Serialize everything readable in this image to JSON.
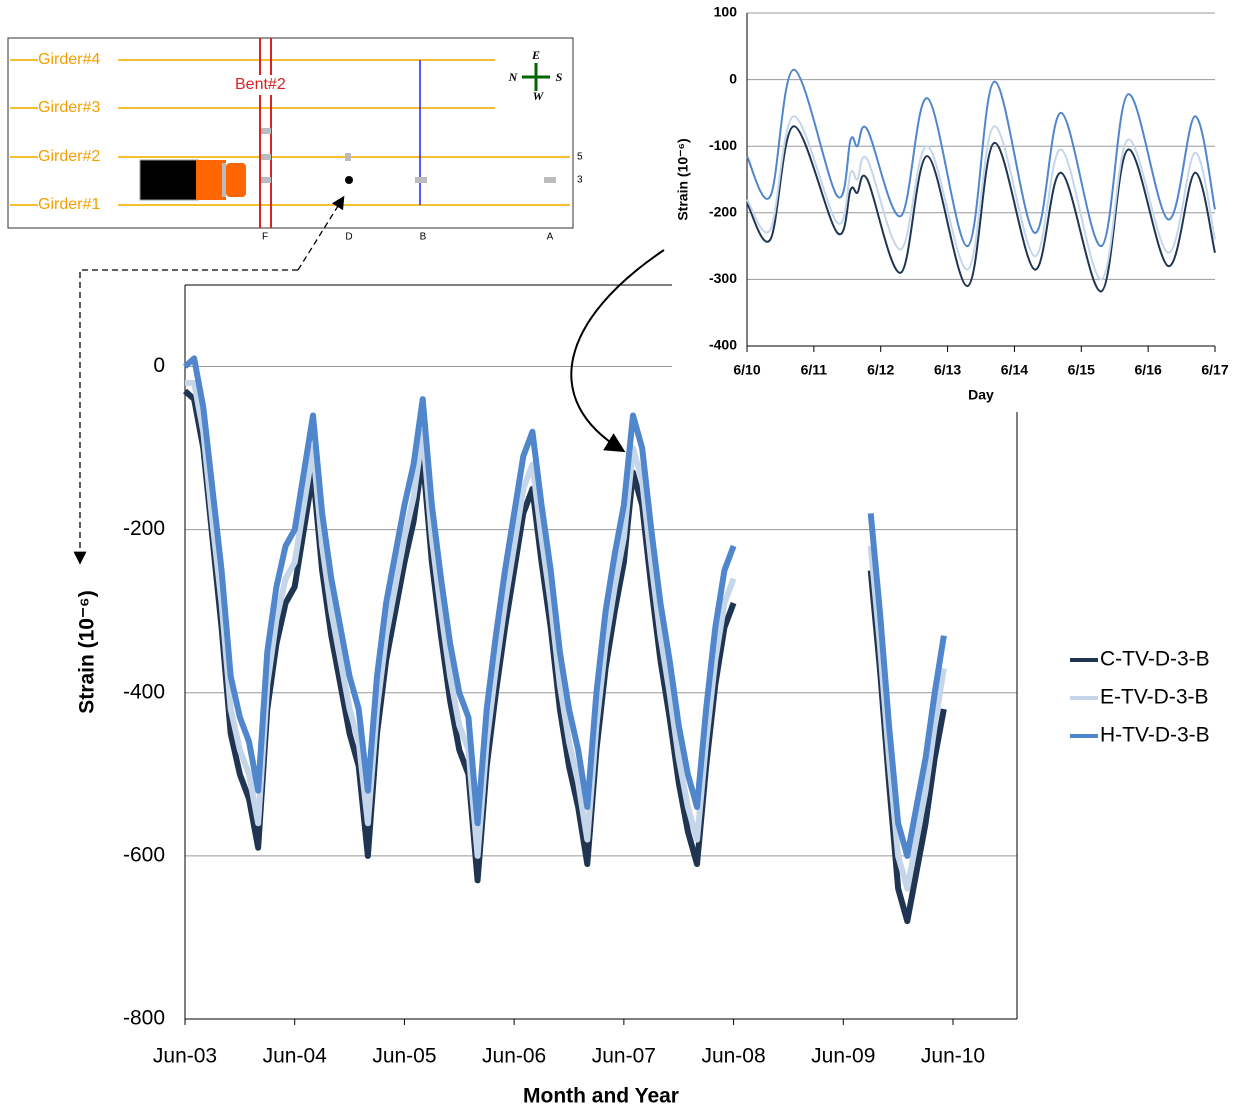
{
  "diagram": {
    "girders": [
      "Girder#4",
      "Girder#3",
      "Girder#2",
      "Girder#1"
    ],
    "bent": "Bent#2",
    "sections": [
      "F",
      "D",
      "B",
      "A"
    ],
    "sensors": [
      "5",
      "3"
    ],
    "compass": {
      "east": "E",
      "north": "N",
      "south": "S",
      "west": "W"
    }
  },
  "chart_data": [
    {
      "type": "line",
      "xlabel": "Month and Year",
      "ylabel": "Strain (10⁻⁶)",
      "legend": "right",
      "grid": true,
      "xlim": [
        "2003-06",
        "2011-01"
      ],
      "xticks": [
        {
          "value": "2003-06",
          "label": "Jun-03"
        },
        {
          "value": "2004-06",
          "label": "Jun-04"
        },
        {
          "value": "2005-06",
          "label": "Jun-05"
        },
        {
          "value": "2006-06",
          "label": "Jun-06"
        },
        {
          "value": "2007-06",
          "label": "Jun-07"
        },
        {
          "value": "2008-06",
          "label": "Jun-08"
        },
        {
          "value": "2009-06",
          "label": "Jun-09"
        },
        {
          "value": "2010-06",
          "label": "Jun-10"
        }
      ],
      "ylim": [
        -800,
        100
      ],
      "yticks": [
        -800,
        -600,
        -400,
        -200,
        0
      ],
      "x": [
        "2003-06",
        "2003-07",
        "2003-08",
        "2003-09",
        "2003-10",
        "2003-11",
        "2003-12",
        "2004-01",
        "2004-02",
        "2004-03",
        "2004-04",
        "2004-05",
        "2004-06",
        "2004-07",
        "2004-08",
        "2004-09",
        "2004-10",
        "2004-11",
        "2004-12",
        "2005-01",
        "2005-02",
        "2005-03",
        "2005-04",
        "2005-05",
        "2005-06",
        "2005-07",
        "2005-08",
        "2005-09",
        "2005-10",
        "2005-11",
        "2005-12",
        "2006-01",
        "2006-02",
        "2006-03",
        "2006-04",
        "2006-05",
        "2006-06",
        "2006-07",
        "2006-08",
        "2006-09",
        "2006-10",
        "2006-11",
        "2006-12",
        "2007-01",
        "2007-02",
        "2007-03",
        "2007-04",
        "2007-05",
        "2007-06",
        "2007-07",
        "2007-08",
        "2007-09",
        "2007-10",
        "2007-11",
        "2007-12",
        "2008-01",
        "2008-02",
        "2008-03",
        "2008-04",
        "2008-05",
        "2008-06",
        "2009-01",
        "2009-09",
        "2009-10",
        "2009-11",
        "2009-12",
        "2010-01",
        "2010-02",
        "2010-03",
        "2010-04",
        "2010-05"
      ],
      "series": [
        {
          "name": "C-TV-D-3-B",
          "color": "#1f3552",
          "values": [
            -30,
            -40,
            -100,
            -210,
            -320,
            -450,
            -500,
            -530,
            -590,
            -420,
            -340,
            -290,
            -270,
            -200,
            -130,
            -250,
            -330,
            -390,
            -450,
            -490,
            -600,
            -450,
            -360,
            -300,
            -240,
            -190,
            -110,
            -240,
            -330,
            -410,
            -470,
            -500,
            -630,
            -490,
            -400,
            -320,
            -250,
            -180,
            -150,
            -240,
            -320,
            -420,
            -490,
            -540,
            -610,
            -470,
            -370,
            -300,
            -240,
            -130,
            -170,
            -270,
            -360,
            -430,
            -510,
            -570,
            -610,
            -490,
            -390,
            -320,
            -290,
            null,
            -250,
            -370,
            -510,
            -640,
            -680,
            -620,
            -560,
            -480,
            -420
          ]
        },
        {
          "name": "E-TV-D-3-B",
          "color": "#c5d6ea",
          "values": [
            -20,
            -20,
            -80,
            -190,
            -290,
            -420,
            -470,
            -500,
            -560,
            -390,
            -310,
            -260,
            -240,
            -170,
            -100,
            -220,
            -300,
            -360,
            -420,
            -460,
            -560,
            -420,
            -330,
            -270,
            -210,
            -160,
            -80,
            -210,
            -300,
            -380,
            -440,
            -470,
            -600,
            -460,
            -370,
            -290,
            -220,
            -150,
            -120,
            -210,
            -290,
            -390,
            -460,
            -510,
            -580,
            -440,
            -340,
            -270,
            -210,
            -100,
            -140,
            -240,
            -330,
            -400,
            -480,
            -540,
            -580,
            -460,
            -360,
            -290,
            -260,
            null,
            -220,
            -340,
            -480,
            -600,
            -640,
            -580,
            -520,
            -440,
            -370
          ]
        },
        {
          "name": "H-TV-D-3-B",
          "color": "#4f86cc",
          "values": [
            0,
            10,
            -50,
            -150,
            -250,
            -380,
            -430,
            -460,
            -520,
            -350,
            -270,
            -220,
            -200,
            -130,
            -60,
            -180,
            -260,
            -320,
            -380,
            -420,
            -520,
            -380,
            -290,
            -230,
            -170,
            -120,
            -40,
            -170,
            -260,
            -340,
            -400,
            -430,
            -560,
            -420,
            -330,
            -250,
            -180,
            -110,
            -80,
            -170,
            -250,
            -350,
            -420,
            -470,
            -540,
            -400,
            -300,
            -230,
            -170,
            -60,
            -100,
            -200,
            -290,
            -360,
            -440,
            -500,
            -540,
            -420,
            -320,
            -250,
            -220,
            null,
            -180,
            -300,
            -440,
            -560,
            -600,
            -540,
            -480,
            -400,
            -330
          ]
        }
      ]
    },
    {
      "type": "line",
      "xlabel": "Day",
      "ylabel": "Strain (10⁻⁶)",
      "grid": true,
      "xlim": [
        10,
        17
      ],
      "xticks": [
        {
          "value": 10,
          "label": "6/10"
        },
        {
          "value": 11,
          "label": "6/11"
        },
        {
          "value": 12,
          "label": "6/12"
        },
        {
          "value": 13,
          "label": "6/13"
        },
        {
          "value": 14,
          "label": "6/14"
        },
        {
          "value": 15,
          "label": "6/15"
        },
        {
          "value": 16,
          "label": "6/16"
        },
        {
          "value": 17,
          "label": "6/17"
        }
      ],
      "ylim": [
        -400,
        100
      ],
      "yticks": [
        -400,
        -300,
        -200,
        -100,
        0,
        100
      ],
      "x": [
        10,
        10.35,
        10.7,
        11.35,
        11.55,
        11.65,
        11.8,
        12.3,
        12.7,
        13.3,
        13.7,
        14.3,
        14.7,
        15.3,
        15.7,
        16.3,
        16.7,
        17
      ],
      "series": [
        {
          "name": "C-TV-D-3-B",
          "color": "#1f3552",
          "values": [
            -185,
            -240,
            -70,
            -230,
            -165,
            -170,
            -150,
            -290,
            -115,
            -310,
            -95,
            -285,
            -140,
            -318,
            -105,
            -280,
            -140,
            -260
          ]
        },
        {
          "name": "E-TV-D-3-B",
          "color": "#c5d6ea",
          "values": [
            -180,
            -225,
            -55,
            -215,
            -140,
            -150,
            -120,
            -255,
            -100,
            -285,
            -70,
            -265,
            -105,
            -300,
            -90,
            -260,
            -110,
            -240
          ]
        },
        {
          "name": "H-TV-D-3-B",
          "color": "#4f86cc",
          "values": [
            -115,
            -175,
            15,
            -175,
            -90,
            -100,
            -75,
            -205,
            -28,
            -250,
            -3,
            -230,
            -50,
            -250,
            -22,
            -210,
            -55,
            -195
          ]
        }
      ]
    }
  ]
}
